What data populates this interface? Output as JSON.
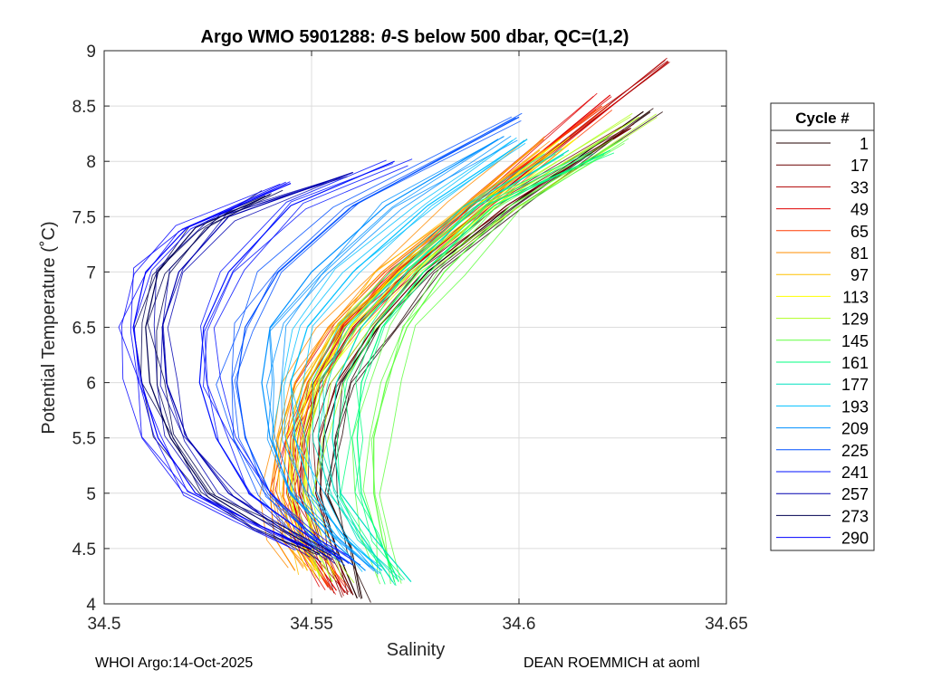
{
  "chart_data": {
    "type": "line",
    "title_prefix": "Argo WMO 5901288: ",
    "title_theta": "θ",
    "title_suffix": "-S below 500 dbar,  QC=(1,2)",
    "xlabel": "Salinity",
    "ylabel": "Potential Temperature (˚C)",
    "xlim": [
      34.5,
      34.65
    ],
    "ylim": [
      4,
      9
    ],
    "xticks": [
      34.5,
      34.55,
      34.6,
      34.65
    ],
    "xtick_labels": [
      "34.5",
      "34.55",
      "34.6",
      "34.65"
    ],
    "yticks": [
      4,
      4.5,
      5,
      5.5,
      6,
      6.5,
      7,
      7.5,
      8,
      8.5,
      9
    ],
    "ytick_labels": [
      "4",
      "4.5",
      "5",
      "5.5",
      "6",
      "6.5",
      "7",
      "7.5",
      "8",
      "8.5",
      "9"
    ],
    "grid": true,
    "legend_title": "Cycle #",
    "legend_position": "right",
    "series": [
      {
        "name": "1",
        "color": "#200000",
        "points": [
          [
            34.561,
            4.05
          ],
          [
            34.556,
            4.5
          ],
          [
            34.552,
            5.0
          ],
          [
            34.553,
            5.5
          ],
          [
            34.557,
            6.0
          ],
          [
            34.566,
            6.5
          ],
          [
            34.578,
            7.0
          ],
          [
            34.598,
            7.6
          ],
          [
            34.63,
            8.45
          ]
        ]
      },
      {
        "name": "17",
        "color": "#6a0000",
        "points": [
          [
            34.56,
            4.08
          ],
          [
            34.555,
            4.5
          ],
          [
            34.551,
            5.0
          ],
          [
            34.552,
            5.5
          ],
          [
            34.556,
            6.0
          ],
          [
            34.565,
            6.5
          ],
          [
            34.577,
            7.0
          ],
          [
            34.597,
            7.6
          ],
          [
            34.627,
            8.3
          ]
        ]
      },
      {
        "name": "33",
        "color": "#b00000",
        "points": [
          [
            34.558,
            4.1
          ],
          [
            34.552,
            4.5
          ],
          [
            34.547,
            5.0
          ],
          [
            34.548,
            5.5
          ],
          [
            34.552,
            6.0
          ],
          [
            34.56,
            6.5
          ],
          [
            34.573,
            7.0
          ],
          [
            34.595,
            7.7
          ],
          [
            34.636,
            8.9
          ]
        ]
      },
      {
        "name": "49",
        "color": "#e00000",
        "points": [
          [
            34.556,
            4.12
          ],
          [
            34.549,
            4.5
          ],
          [
            34.545,
            5.0
          ],
          [
            34.546,
            5.5
          ],
          [
            34.55,
            6.0
          ],
          [
            34.558,
            6.5
          ],
          [
            34.571,
            7.0
          ],
          [
            34.593,
            7.7
          ],
          [
            34.622,
            8.6
          ]
        ]
      },
      {
        "name": "65",
        "color": "#ff3a00",
        "points": [
          [
            34.554,
            4.15
          ],
          [
            34.548,
            4.5
          ],
          [
            34.544,
            5.0
          ],
          [
            34.545,
            5.5
          ],
          [
            34.549,
            6.0
          ],
          [
            34.557,
            6.5
          ],
          [
            34.57,
            7.0
          ],
          [
            34.592,
            7.7
          ],
          [
            34.62,
            8.5
          ]
        ]
      },
      {
        "name": "81",
        "color": "#ff8c00",
        "points": [
          [
            34.546,
            4.3
          ],
          [
            34.541,
            4.6
          ],
          [
            34.54,
            5.0
          ],
          [
            34.542,
            5.5
          ],
          [
            34.546,
            6.0
          ],
          [
            34.554,
            6.5
          ],
          [
            34.567,
            7.0
          ],
          [
            34.587,
            7.6
          ],
          [
            34.606,
            8.2
          ]
        ]
      },
      {
        "name": "97",
        "color": "#ffc000",
        "points": [
          [
            34.549,
            4.3
          ],
          [
            34.545,
            4.6
          ],
          [
            34.543,
            5.0
          ],
          [
            34.544,
            5.5
          ],
          [
            34.548,
            6.0
          ],
          [
            34.556,
            6.5
          ],
          [
            34.569,
            7.0
          ],
          [
            34.588,
            7.6
          ],
          [
            34.605,
            8.1
          ]
        ]
      },
      {
        "name": "113",
        "color": "#ffff00",
        "points": [
          [
            34.552,
            4.25
          ],
          [
            34.547,
            4.6
          ],
          [
            34.545,
            5.0
          ],
          [
            34.546,
            5.5
          ],
          [
            34.55,
            6.0
          ],
          [
            34.558,
            6.5
          ],
          [
            34.571,
            7.0
          ],
          [
            34.59,
            7.6
          ],
          [
            34.61,
            8.2
          ]
        ]
      },
      {
        "name": "129",
        "color": "#b0ff20",
        "points": [
          [
            34.555,
            4.2
          ],
          [
            34.55,
            4.6
          ],
          [
            34.548,
            5.0
          ],
          [
            34.549,
            5.5
          ],
          [
            34.553,
            6.0
          ],
          [
            34.561,
            6.5
          ],
          [
            34.574,
            7.0
          ],
          [
            34.594,
            7.6
          ],
          [
            34.629,
            8.4
          ]
        ]
      },
      {
        "name": "145",
        "color": "#60ff40",
        "points": [
          [
            34.57,
            4.2
          ],
          [
            34.567,
            4.6
          ],
          [
            34.565,
            5.0
          ],
          [
            34.565,
            5.5
          ],
          [
            34.568,
            6.0
          ],
          [
            34.573,
            6.5
          ],
          [
            34.582,
            7.0
          ],
          [
            34.598,
            7.6
          ],
          [
            34.625,
            8.2
          ]
        ]
      },
      {
        "name": "161",
        "color": "#00ff80",
        "points": [
          [
            34.571,
            4.2
          ],
          [
            34.566,
            4.6
          ],
          [
            34.562,
            5.0
          ],
          [
            34.561,
            5.5
          ],
          [
            34.562,
            6.0
          ],
          [
            34.567,
            6.5
          ],
          [
            34.577,
            7.0
          ],
          [
            34.594,
            7.6
          ],
          [
            34.622,
            8.1
          ]
        ]
      },
      {
        "name": "177",
        "color": "#00e0c0",
        "points": [
          [
            34.574,
            4.2
          ],
          [
            34.565,
            4.6
          ],
          [
            34.557,
            5.0
          ],
          [
            34.555,
            5.5
          ],
          [
            34.556,
            6.0
          ],
          [
            34.562,
            6.5
          ],
          [
            34.573,
            7.0
          ],
          [
            34.59,
            7.6
          ],
          [
            34.612,
            8.1
          ]
        ]
      },
      {
        "name": "193",
        "color": "#00c0ff",
        "points": [
          [
            34.567,
            4.3
          ],
          [
            34.558,
            4.6
          ],
          [
            34.55,
            5.0
          ],
          [
            34.546,
            5.5
          ],
          [
            34.545,
            6.0
          ],
          [
            34.549,
            6.5
          ],
          [
            34.56,
            7.0
          ],
          [
            34.578,
            7.6
          ],
          [
            34.602,
            8.2
          ]
        ]
      },
      {
        "name": "209",
        "color": "#0090ff",
        "points": [
          [
            34.563,
            4.3
          ],
          [
            34.554,
            4.6
          ],
          [
            34.545,
            5.0
          ],
          [
            34.54,
            5.5
          ],
          [
            34.538,
            6.0
          ],
          [
            34.54,
            6.5
          ],
          [
            34.55,
            7.0
          ],
          [
            34.568,
            7.6
          ],
          [
            34.595,
            8.2
          ]
        ]
      },
      {
        "name": "225",
        "color": "#0050ff",
        "points": [
          [
            34.56,
            4.35
          ],
          [
            34.55,
            4.6
          ],
          [
            34.54,
            5.0
          ],
          [
            34.534,
            5.5
          ],
          [
            34.532,
            6.0
          ],
          [
            34.534,
            6.5
          ],
          [
            34.542,
            7.0
          ],
          [
            34.56,
            7.6
          ],
          [
            34.6,
            8.4
          ]
        ]
      },
      {
        "name": "241",
        "color": "#0010ff",
        "points": [
          [
            34.557,
            4.4
          ],
          [
            34.546,
            4.7
          ],
          [
            34.535,
            5.0
          ],
          [
            34.527,
            5.5
          ],
          [
            34.523,
            6.0
          ],
          [
            34.524,
            6.5
          ],
          [
            34.53,
            7.0
          ],
          [
            34.545,
            7.6
          ],
          [
            34.57,
            8.0
          ]
        ]
      },
      {
        "name": "257",
        "color": "#0000b0",
        "points": [
          [
            34.555,
            4.4
          ],
          [
            34.542,
            4.7
          ],
          [
            34.53,
            5.0
          ],
          [
            34.52,
            5.5
          ],
          [
            34.515,
            6.0
          ],
          [
            34.514,
            6.5
          ],
          [
            34.518,
            7.0
          ],
          [
            34.53,
            7.5
          ],
          [
            34.56,
            7.9
          ]
        ]
      },
      {
        "name": "273",
        "color": "#000050",
        "points": [
          [
            34.552,
            4.45
          ],
          [
            34.538,
            4.7
          ],
          [
            34.525,
            5.0
          ],
          [
            34.516,
            5.5
          ],
          [
            34.511,
            6.0
          ],
          [
            34.51,
            6.5
          ],
          [
            34.513,
            7.0
          ],
          [
            34.522,
            7.4
          ],
          [
            34.54,
            7.7
          ]
        ]
      },
      {
        "name": "290",
        "color": "#0000ff",
        "points": [
          [
            34.55,
            4.5
          ],
          [
            34.535,
            4.75
          ],
          [
            34.522,
            5.0
          ],
          [
            34.513,
            5.5
          ],
          [
            34.509,
            6.0
          ],
          [
            34.507,
            6.5
          ],
          [
            34.51,
            7.0
          ],
          [
            34.52,
            7.4
          ],
          [
            34.545,
            7.8
          ]
        ]
      }
    ]
  },
  "footer": {
    "left": "WHOI Argo:14-Oct-2025",
    "right": "DEAN ROEMMICH at aoml"
  }
}
